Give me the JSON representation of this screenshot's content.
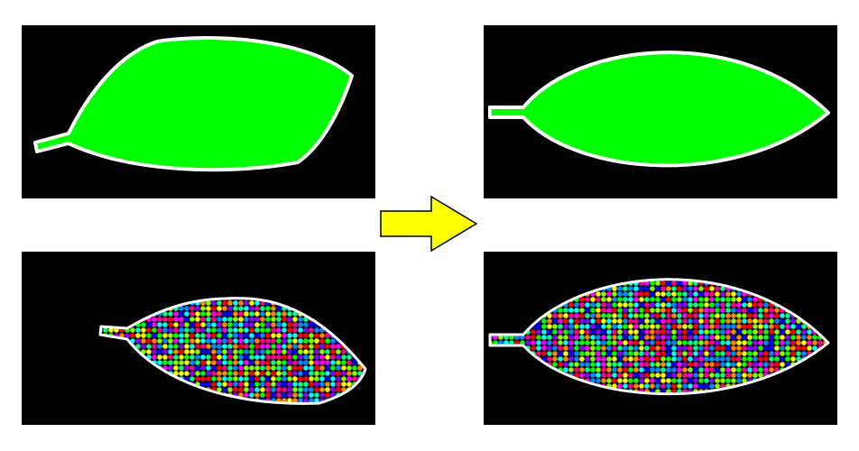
{
  "colors": {
    "background": "#ffffff",
    "panel_background": "#000000",
    "leaf_fill": "#00ff00",
    "leaf_outline": "#ffffff",
    "arrow_fill": "#ffff00",
    "arrow_outline": "#000000",
    "texture_palette": [
      "#ff0000",
      "#00ff00",
      "#0000ff",
      "#ffff00",
      "#ff00ff",
      "#00ffff",
      "#ff8800",
      "#8800ff",
      "#00ff88",
      "#0088ff",
      "#88ff00",
      "#ff0088"
    ]
  },
  "panels": [
    {
      "id": "top-left",
      "state": "tilted",
      "fill": "solid"
    },
    {
      "id": "top-right",
      "state": "straightened",
      "fill": "solid"
    },
    {
      "id": "bottom-left",
      "state": "tilted",
      "fill": "textured"
    },
    {
      "id": "bottom-right",
      "state": "straightened",
      "fill": "textured"
    }
  ],
  "arrow": {
    "icon": "right-arrow-icon",
    "direction": "right"
  }
}
